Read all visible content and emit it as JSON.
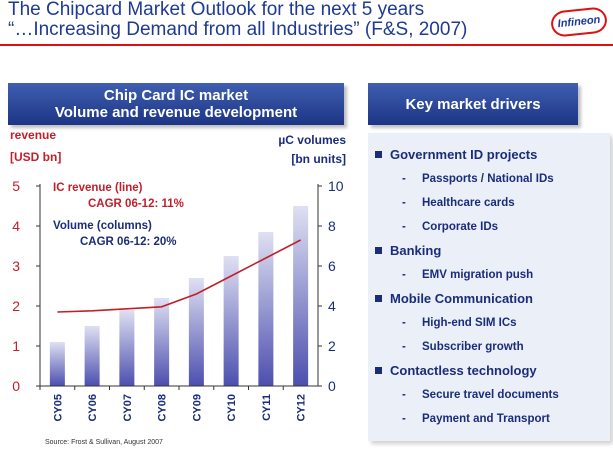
{
  "title": {
    "line1": "The Chipcard Market Outlook for the next 5 years",
    "line2": "“…Increasing Demand from all Industries” (F&S, 2007)"
  },
  "logo_text": "Infineon",
  "colors": {
    "brand_blue": "#1f3a93",
    "accent_red": "#d11",
    "bar_top": "#dfe0f2",
    "bar_bottom": "#4c4fae",
    "line": "#c0202c"
  },
  "left_panel": {
    "header_line1": "Chip Card IC market",
    "header_line2": "Volume and revenue development"
  },
  "right_panel": {
    "header": "Key market drivers",
    "groups": [
      {
        "label": "Government ID projects",
        "items": [
          "Passports / National IDs",
          "Healthcare cards",
          "Corporate IDs"
        ]
      },
      {
        "label": "Banking",
        "items": [
          "EMV migration push"
        ]
      },
      {
        "label": "Mobile Communication",
        "items": [
          "High-end SIM ICs",
          "Subscriber growth"
        ]
      },
      {
        "label": "Contactless technology",
        "items": [
          "Secure travel documents",
          "Payment and Transport"
        ]
      }
    ]
  },
  "chart_data": {
    "type": "bar",
    "categories": [
      "CY05",
      "CY06",
      "CY07",
      "CY08",
      "CY09",
      "CY10",
      "CY11",
      "CY12"
    ],
    "series": [
      {
        "name": "Volume (columns)",
        "axis": "right",
        "mark": "bar",
        "values": [
          2.2,
          3.0,
          3.8,
          4.4,
          5.4,
          6.5,
          7.7,
          9.0
        ]
      },
      {
        "name": "IC revenue (line)",
        "axis": "left",
        "mark": "line",
        "values": [
          1.85,
          1.88,
          1.93,
          1.98,
          2.3,
          2.75,
          3.2,
          3.65
        ]
      }
    ],
    "left_axis": {
      "label_line1": "revenue",
      "label_line2": "[USD bn]",
      "ticks": [
        0,
        1,
        2,
        3,
        4,
        5
      ],
      "range": [
        0,
        5
      ]
    },
    "right_axis": {
      "label_line1": "µC volumes",
      "label_line2": "[bn units]",
      "ticks": [
        0,
        2,
        4,
        6,
        8,
        10
      ],
      "range": [
        0,
        10
      ]
    },
    "annotations": {
      "revenue_label": "IC revenue (line)",
      "revenue_cagr": "CAGR 06-12: 11%",
      "volume_label": "Volume (columns)",
      "volume_cagr": "CAGR 06-12: 20%"
    },
    "source": "Source: Frost & Sullivan, August 2007"
  }
}
